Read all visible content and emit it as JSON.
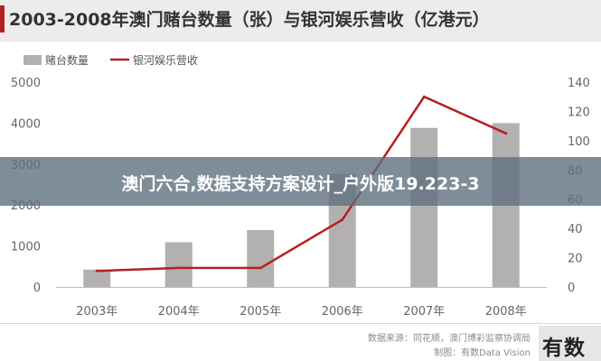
{
  "header": {
    "title": "2003-2008年澳门赌台数量（张）与银河娱乐营收（亿港元）"
  },
  "chart_data": {
    "type": "bar",
    "categories": [
      "2003年",
      "2004年",
      "2005年",
      "2006年",
      "2007年",
      "2008年"
    ],
    "series": [
      {
        "name": "赌台数量",
        "type": "bar",
        "axis": "left",
        "values": [
          424,
          1092,
          1388,
          2762,
          3883,
          4000
        ]
      },
      {
        "name": "银河娱乐营收",
        "type": "line",
        "axis": "right",
        "values": [
          11,
          13,
          13,
          46,
          130,
          105
        ]
      }
    ],
    "y_left": {
      "ylim": [
        0,
        5000
      ],
      "ticks": [
        "0",
        "1000",
        "2000",
        "3000",
        "4000",
        "5000"
      ]
    },
    "y_right": {
      "ylim": [
        0,
        140
      ],
      "ticks": [
        "0",
        "20",
        "40",
        "60",
        "80",
        "100",
        "120",
        "140"
      ]
    },
    "legend": "top-left",
    "grid": false,
    "colors": {
      "bar": "#b3b0b0",
      "line": "#b22222"
    }
  },
  "overlay": {
    "text": "澳门六合,数据支持方案设计_户外版19.223-3"
  },
  "footer": {
    "source_line1": "数据来源：同花顺，澳门博彩监察协调局",
    "source_line2": "制图：有数Data Vision",
    "logo": "有数"
  }
}
